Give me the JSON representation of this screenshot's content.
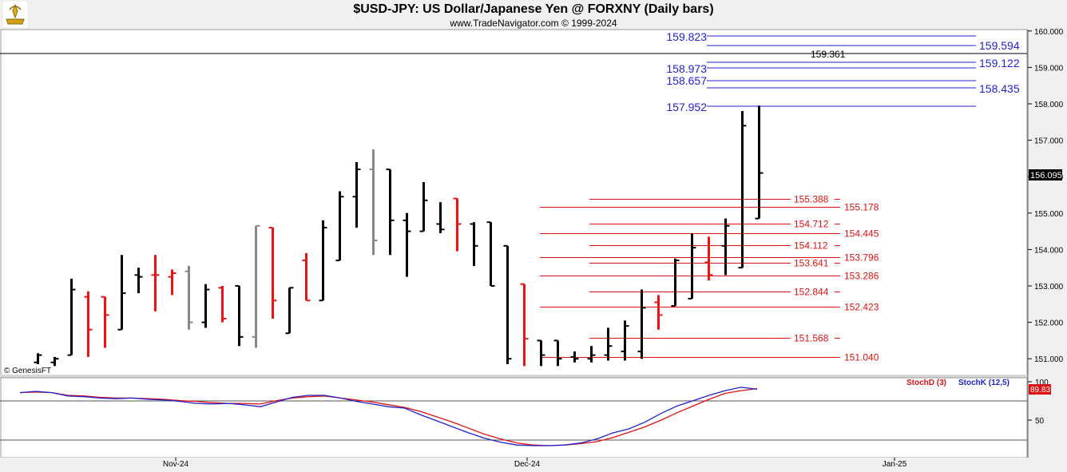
{
  "header": {
    "title": "$USD-JPY:  US Dollar/Japanese Yen @ FORXNY  (Daily bars)",
    "subtitle": "www.TradeNavigator.com © 1999-2024",
    "logo_icon": "bull-logo-icon"
  },
  "watermark": "© GenesisFT",
  "colors": {
    "up_bar": "#000000",
    "down_bar": "#ee1111",
    "neutral_bar": "#888888",
    "blue_level": "#1f1fcf",
    "red_level": "#dd1111",
    "stoch_d": "#dd1111",
    "stoch_k": "#2222cc"
  },
  "chart_data": [
    {
      "type": "ohlc",
      "title": "$USD-JPY:  US Dollar/Japanese Yen @ FORXNY  (Daily bars)",
      "x_tick_labels": [
        "Nov-24",
        "Dec-24",
        "Jan-25"
      ],
      "y_range": [
        150.8,
        160.2
      ],
      "y_ticks": [
        "160.000",
        "159.000",
        "158.000",
        "157.000",
        "156.000",
        "155.000",
        "154.000",
        "153.000",
        "152.000",
        "151.000"
      ],
      "last_price": "156.095",
      "grid": false,
      "bars": [
        {
          "h": 151.15,
          "l": 150.85,
          "o": 150.9,
          "c": 151.1,
          "color": "black"
        },
        {
          "h": 151.05,
          "l": 150.8,
          "o": 150.9,
          "c": 151.0,
          "color": "black"
        },
        {
          "h": 153.2,
          "l": 151.1,
          "o": 151.1,
          "c": 152.9,
          "color": "black"
        },
        {
          "h": 152.85,
          "l": 151.05,
          "o": 152.7,
          "c": 151.8,
          "color": "red"
        },
        {
          "h": 152.7,
          "l": 151.3,
          "o": 152.7,
          "c": 152.2,
          "color": "red"
        },
        {
          "h": 153.85,
          "l": 151.8,
          "o": 151.8,
          "c": 152.8,
          "color": "black"
        },
        {
          "h": 153.5,
          "l": 152.8,
          "o": 153.3,
          "c": 153.25,
          "color": "black"
        },
        {
          "h": 153.85,
          "l": 152.3,
          "o": 153.3,
          "c": 153.3,
          "color": "red"
        },
        {
          "h": 153.45,
          "l": 152.75,
          "o": 153.25,
          "c": 153.35,
          "color": "red"
        },
        {
          "h": 153.55,
          "l": 151.8,
          "o": 153.4,
          "c": 152.0,
          "color": "gray"
        },
        {
          "h": 153.05,
          "l": 151.85,
          "o": 152.0,
          "c": 152.9,
          "color": "black"
        },
        {
          "h": 153.0,
          "l": 152.0,
          "o": 152.95,
          "c": 152.1,
          "color": "red"
        },
        {
          "h": 153.0,
          "l": 151.35,
          "o": 153.0,
          "c": 151.6,
          "color": "black"
        },
        {
          "h": 154.65,
          "l": 151.3,
          "o": 151.6,
          "c": 154.65,
          "color": "gray"
        },
        {
          "h": 154.6,
          "l": 152.1,
          "o": 154.6,
          "c": 152.6,
          "color": "red"
        },
        {
          "h": 152.95,
          "l": 151.7,
          "o": 151.7,
          "c": 152.95,
          "color": "black"
        },
        {
          "h": 153.9,
          "l": 152.6,
          "o": 153.7,
          "c": 152.6,
          "color": "red"
        },
        {
          "h": 154.8,
          "l": 152.6,
          "o": 152.6,
          "c": 154.6,
          "color": "black"
        },
        {
          "h": 155.6,
          "l": 153.7,
          "o": 153.7,
          "c": 155.45,
          "color": "black"
        },
        {
          "h": 156.4,
          "l": 154.6,
          "o": 155.45,
          "c": 156.2,
          "color": "black"
        },
        {
          "h": 156.75,
          "l": 153.85,
          "o": 156.2,
          "c": 154.25,
          "color": "gray"
        },
        {
          "h": 156.2,
          "l": 153.85,
          "o": 156.2,
          "c": 154.8,
          "color": "black"
        },
        {
          "h": 155.0,
          "l": 153.25,
          "o": 154.8,
          "c": 154.5,
          "color": "black"
        },
        {
          "h": 155.85,
          "l": 154.5,
          "o": 154.5,
          "c": 155.35,
          "color": "black"
        },
        {
          "h": 155.3,
          "l": 154.45,
          "o": 154.7,
          "c": 154.55,
          "color": "black"
        },
        {
          "h": 155.4,
          "l": 153.95,
          "o": 155.4,
          "c": 154.7,
          "color": "red"
        },
        {
          "h": 154.75,
          "l": 153.55,
          "o": 154.7,
          "c": 154.1,
          "color": "black"
        },
        {
          "h": 154.75,
          "l": 153.0,
          "o": 154.75,
          "c": 153.0,
          "color": "black"
        },
        {
          "h": 154.1,
          "l": 150.85,
          "o": 154.1,
          "c": 151.0,
          "color": "black"
        },
        {
          "h": 153.05,
          "l": 150.8,
          "o": 153.05,
          "c": 151.55,
          "color": "red"
        },
        {
          "h": 151.5,
          "l": 150.8,
          "o": 151.5,
          "c": 151.1,
          "color": "black"
        },
        {
          "h": 151.5,
          "l": 150.8,
          "o": 151.5,
          "c": 151.0,
          "color": "black"
        },
        {
          "h": 151.2,
          "l": 150.9,
          "o": 151.05,
          "c": 151.0,
          "color": "black"
        },
        {
          "h": 151.35,
          "l": 150.9,
          "o": 151.0,
          "c": 151.1,
          "color": "black"
        },
        {
          "h": 151.85,
          "l": 150.95,
          "o": 151.1,
          "c": 151.35,
          "color": "black"
        },
        {
          "h": 152.05,
          "l": 150.95,
          "o": 151.2,
          "c": 151.9,
          "color": "black"
        },
        {
          "h": 152.9,
          "l": 151.0,
          "o": 151.2,
          "c": 152.4,
          "color": "black"
        },
        {
          "h": 152.75,
          "l": 151.8,
          "o": 152.55,
          "c": 152.2,
          "color": "red"
        },
        {
          "h": 153.75,
          "l": 152.45,
          "o": 152.45,
          "c": 153.7,
          "color": "black"
        },
        {
          "h": 154.45,
          "l": 152.65,
          "o": 152.65,
          "c": 154.05,
          "color": "black"
        },
        {
          "h": 154.35,
          "l": 153.15,
          "o": 153.65,
          "c": 153.3,
          "color": "red"
        },
        {
          "h": 154.85,
          "l": 153.3,
          "o": 154.1,
          "c": 154.65,
          "color": "black"
        },
        {
          "h": 157.8,
          "l": 153.5,
          "o": 153.5,
          "c": 157.4,
          "color": "black"
        },
        {
          "h": 157.95,
          "l": 154.85,
          "o": 154.85,
          "c": 156.1,
          "color": "black"
        }
      ],
      "levels_blue": [
        "159.823",
        "159.594",
        "159.122",
        "158.973",
        "158.657",
        "158.435",
        "157.952"
      ],
      "level_black": "159.361",
      "levels_red": [
        "155.388",
        "155.178",
        "154.712",
        "154.445",
        "154.112",
        "153.796",
        "153.641",
        "153.286",
        "152.844",
        "152.423",
        "151.568",
        "151.040"
      ]
    },
    {
      "type": "line",
      "title": "Stochastic",
      "y_range": [
        0,
        100
      ],
      "y_ticks": [
        "100",
        "50"
      ],
      "current_value": "89.83",
      "series": [
        {
          "name": "StochD (3)",
          "values": [
            84,
            85,
            84,
            80,
            79,
            77,
            76,
            76,
            75,
            74,
            72,
            71,
            69,
            68,
            68,
            67,
            72,
            76,
            78,
            79,
            76,
            73,
            70,
            66,
            62,
            56,
            48,
            40,
            31,
            22,
            15,
            9,
            6,
            5,
            6,
            8,
            11,
            17,
            25,
            33,
            43,
            54,
            64,
            74,
            83,
            87,
            90
          ]
        },
        {
          "name": "StochK (12,5)",
          "values": [
            84,
            86,
            84,
            79,
            78,
            76,
            75,
            76,
            74,
            73,
            71,
            68,
            67,
            68,
            66,
            63,
            70,
            77,
            80,
            80,
            76,
            71,
            67,
            63,
            61,
            51,
            42,
            33,
            24,
            16,
            10,
            6,
            5,
            5,
            6,
            9,
            15,
            24,
            30,
            40,
            53,
            64,
            72,
            80,
            87,
            92,
            89
          ]
        }
      ]
    }
  ]
}
